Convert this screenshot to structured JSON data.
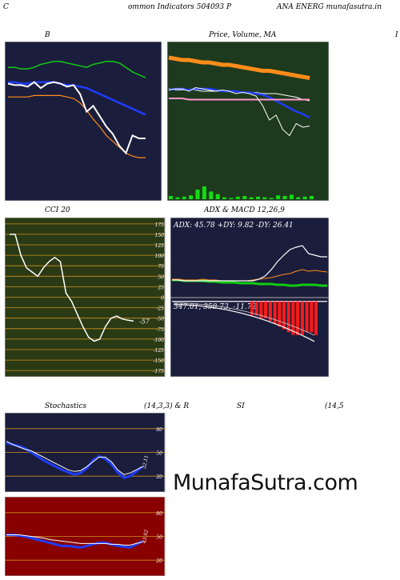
{
  "header": {
    "left": "C",
    "title": "ommon  Indicators 504093 P",
    "right": "ANA ENERG munafasutra.in"
  },
  "watermark": "MunafaSutra.com",
  "panels": {
    "bollinger": {
      "title": "B",
      "title_right": "I"
    },
    "price": {
      "title": "Price,  Volume,  MA"
    },
    "cci": {
      "title": "CCI 20",
      "last_label": "-57"
    },
    "adx": {
      "title": "ADX  & MACD 12,26,9",
      "readout": "ADX: 45.78  +DY: 9.82  -DY: 26.41",
      "macd_readout": "347.01,  358.73,  -11.72"
    },
    "stoch": {
      "title_left": "Stochastics",
      "title_mid": "(14,3,3) & R",
      "title_rsi": "SI",
      "title_right": "(14,5",
      "last_label": "32.11"
    },
    "rsi": {
      "last_label": "43.92"
    }
  },
  "colors": {
    "navy": "#1b1d3c",
    "forest": "#1e3a1e",
    "olive": "#2a3a14",
    "maroon": "#880000",
    "orange": "#ff8c1a",
    "green": "#11cc11",
    "blue": "#1e3cff",
    "white": "#ffffff",
    "pink": "#ff99cc",
    "red": "#ff1a1a"
  },
  "chart_data": [
    {
      "type": "line",
      "name": "bollinger",
      "series": [
        {
          "name": "upper",
          "color": "#11cc11",
          "values": [
            88,
            88,
            87,
            87,
            88,
            90,
            91,
            92,
            92,
            91,
            90,
            89,
            88,
            90,
            91,
            92,
            92,
            91,
            88,
            85,
            83,
            81
          ]
        },
        {
          "name": "middle",
          "color": "#1e3cff",
          "values": [
            78,
            78,
            77,
            77,
            78,
            78,
            78,
            78,
            77,
            76,
            76,
            75,
            74,
            72,
            70,
            68,
            66,
            64,
            62,
            60,
            58,
            56
          ]
        },
        {
          "name": "lower",
          "color": "#ff8c1a",
          "values": [
            68,
            68,
            68,
            68,
            69,
            69,
            69,
            69,
            69,
            68,
            67,
            64,
            59,
            53,
            48,
            42,
            38,
            34,
            30,
            28,
            27,
            27
          ]
        },
        {
          "name": "price",
          "color": "#ffffff",
          "values": [
            77,
            76,
            76,
            75,
            78,
            74,
            77,
            78,
            77,
            75,
            76,
            70,
            58,
            62,
            55,
            48,
            43,
            35,
            30,
            42,
            40,
            40
          ]
        }
      ],
      "ylim": [
        0,
        100
      ]
    },
    {
      "type": "line",
      "name": "price_volume_ma",
      "series": [
        {
          "name": "ma_long",
          "color": "#ff8c1a",
          "values": [
            90,
            89,
            88,
            88,
            87,
            86,
            86,
            85,
            84,
            84,
            83,
            82,
            81,
            80,
            79,
            79,
            78,
            77,
            76,
            75,
            74,
            73
          ]
        },
        {
          "name": "ma_mid",
          "color": "#ffffff",
          "values": [
            64,
            63,
            63,
            63,
            63,
            62,
            62,
            62,
            62,
            62,
            62,
            61,
            61,
            61,
            60,
            60,
            60,
            59,
            58,
            57,
            55,
            54
          ]
        },
        {
          "name": "ma_short",
          "color": "#1e3cff",
          "values": [
            63,
            64,
            64,
            63,
            64,
            64,
            64,
            63,
            62,
            62,
            62,
            61,
            61,
            60,
            59,
            57,
            54,
            51,
            48,
            45,
            43,
            40
          ]
        },
        {
          "name": "ma_pink",
          "color": "#ff99cc",
          "values": [
            56,
            56,
            56,
            55,
            55,
            55,
            55,
            55,
            55,
            55,
            55,
            55,
            55,
            55,
            55,
            55,
            55,
            55,
            55,
            55,
            55,
            55
          ]
        },
        {
          "name": "price",
          "color": "#ffffff",
          "values": [
            63,
            64,
            64,
            62,
            65,
            64,
            63,
            62,
            63,
            62,
            60,
            61,
            60,
            58,
            50,
            38,
            42,
            30,
            25,
            35,
            32,
            33
          ]
        }
      ],
      "volume": [
        5,
        3,
        4,
        6,
        15,
        20,
        12,
        8,
        3,
        2,
        4,
        5,
        3,
        4,
        3,
        2,
        6,
        5,
        7,
        3,
        4,
        5
      ],
      "ylim": [
        0,
        100
      ]
    },
    {
      "type": "line",
      "name": "cci",
      "ticks": [
        "175",
        "150",
        "125",
        "100",
        "75",
        "50",
        "25",
        "0",
        "-25",
        "-50",
        "-75",
        "-100",
        "-125",
        "-150",
        "-175"
      ],
      "series": [
        {
          "name": "cci",
          "color": "#ffffff",
          "values": [
            150,
            150,
            100,
            70,
            60,
            50,
            70,
            85,
            95,
            85,
            10,
            -10,
            -40,
            -70,
            -95,
            -105,
            -100,
            -70,
            -50,
            -45,
            -52,
            -55,
            -57
          ]
        }
      ],
      "ylim": [
        -190,
        190
      ]
    },
    {
      "type": "line",
      "name": "adx",
      "series": [
        {
          "name": "plus_dy",
          "color": "#11cc11",
          "values": [
            17,
            17,
            16,
            16,
            16,
            16,
            15,
            15,
            14,
            14,
            14,
            13,
            13,
            13,
            12,
            12,
            12,
            11,
            11,
            10,
            10,
            11,
            11,
            11,
            10,
            10
          ]
        },
        {
          "name": "minus_dy",
          "color": "#ff8c1a",
          "values": [
            18,
            18,
            17,
            17,
            17,
            18,
            17,
            17,
            16,
            16,
            16,
            16,
            16,
            17,
            18,
            19,
            20,
            22,
            24,
            25,
            28,
            30,
            28,
            29,
            28,
            27
          ]
        },
        {
          "name": "adx",
          "color": "#ffffff",
          "values": [
            17,
            17,
            16,
            16,
            16,
            16,
            16,
            16,
            16,
            16,
            16,
            16,
            16,
            16,
            18,
            22,
            30,
            40,
            48,
            55,
            58,
            60,
            50,
            48,
            46,
            46
          ]
        }
      ],
      "ylim": [
        0,
        80
      ]
    },
    {
      "type": "bar",
      "name": "macd",
      "values": [
        -1,
        -1,
        -1,
        -1,
        -2,
        -2,
        -3,
        -3,
        -4,
        -4,
        -5,
        -5,
        -6,
        -6,
        -7,
        -8,
        -9,
        -10,
        -11,
        -12,
        -12,
        -12,
        -11,
        -11,
        -12
      ],
      "ylim": [
        -30,
        10
      ]
    },
    {
      "type": "line",
      "name": "stochastics",
      "ticks": [
        "80",
        "50",
        "20"
      ],
      "series": [
        {
          "name": "k",
          "color": "#1e3cff",
          "values": [
            62,
            60,
            58,
            55,
            50,
            45,
            40,
            36,
            32,
            28,
            25,
            22,
            24,
            30,
            40,
            45,
            42,
            35,
            25,
            18,
            20,
            26,
            32
          ]
        },
        {
          "name": "d",
          "color": "#ffffff",
          "values": [
            64,
            60,
            57,
            54,
            52,
            48,
            44,
            40,
            36,
            32,
            28,
            26,
            27,
            32,
            38,
            44,
            44,
            38,
            28,
            22,
            24,
            28,
            32
          ]
        }
      ],
      "ylim": [
        0,
        100
      ]
    },
    {
      "type": "line",
      "name": "rsi",
      "ticks": [
        "80",
        "50",
        "20"
      ],
      "series": [
        {
          "name": "rsi",
          "color": "#1e3cff",
          "values": [
            52,
            52,
            51,
            50,
            48,
            46,
            44,
            42,
            40,
            38,
            38,
            37,
            36,
            38,
            40,
            42,
            42,
            40,
            38,
            37,
            36,
            40,
            44
          ]
        },
        {
          "name": "avg",
          "color": "#ffffff",
          "values": [
            52,
            52,
            52,
            51,
            50,
            49,
            48,
            46,
            45,
            44,
            43,
            42,
            41,
            41,
            41,
            41,
            41,
            40,
            40,
            39,
            39,
            41,
            43
          ]
        }
      ],
      "ylim": [
        0,
        100
      ]
    }
  ]
}
